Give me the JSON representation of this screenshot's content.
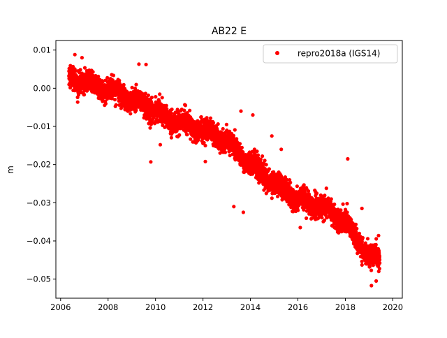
{
  "chart_data": {
    "type": "scatter",
    "title": "AB22 E",
    "xlabel": "",
    "ylabel": "m",
    "xlim": [
      2005.8,
      2020.4
    ],
    "ylim": [
      -0.055,
      0.0125
    ],
    "xticks": [
      2006,
      2008,
      2010,
      2012,
      2014,
      2016,
      2018,
      2020
    ],
    "xtick_labels": [
      "2006",
      "2008",
      "2010",
      "2012",
      "2014",
      "2016",
      "2018",
      "2020"
    ],
    "yticks": [
      0.01,
      0.0,
      -0.01,
      -0.02,
      -0.03,
      -0.04,
      -0.05
    ],
    "ytick_labels": [
      "0.01",
      "0.00",
      "−0.01",
      "−0.02",
      "−0.03",
      "−0.04",
      "−0.05"
    ],
    "grid": false,
    "legend": {
      "position": "top-right"
    },
    "series": [
      {
        "name": "repro2018a (IGS14)",
        "color": "#ff0000",
        "marker": "circle",
        "x_range": [
          2006.35,
          2019.45
        ],
        "trend": [
          [
            2006.4,
            0.003
          ],
          [
            2007.0,
            0.0015
          ],
          [
            2007.5,
            0.0005
          ],
          [
            2008.0,
            -0.0005
          ],
          [
            2008.5,
            -0.001
          ],
          [
            2009.0,
            -0.003
          ],
          [
            2009.5,
            -0.004
          ],
          [
            2010.0,
            -0.006
          ],
          [
            2010.5,
            -0.008
          ],
          [
            2011.0,
            -0.009
          ],
          [
            2011.5,
            -0.01
          ],
          [
            2012.0,
            -0.011
          ],
          [
            2012.5,
            -0.012
          ],
          [
            2013.0,
            -0.014
          ],
          [
            2013.5,
            -0.017
          ],
          [
            2014.0,
            -0.02
          ],
          [
            2014.5,
            -0.022
          ],
          [
            2015.0,
            -0.025
          ],
          [
            2015.5,
            -0.027
          ],
          [
            2016.0,
            -0.029
          ],
          [
            2016.5,
            -0.03
          ],
          [
            2017.0,
            -0.031
          ],
          [
            2017.5,
            -0.033
          ],
          [
            2018.0,
            -0.035
          ],
          [
            2018.5,
            -0.04
          ],
          [
            2019.0,
            -0.044
          ],
          [
            2019.4,
            -0.045
          ]
        ],
        "spread": 0.0025,
        "outliers": [
          [
            2006.6,
            0.0088
          ],
          [
            2006.9,
            0.008
          ],
          [
            2009.3,
            0.0063
          ],
          [
            2009.6,
            0.0062
          ],
          [
            2009.8,
            -0.0193
          ],
          [
            2010.2,
            -0.0148
          ],
          [
            2012.1,
            -0.0192
          ],
          [
            2013.3,
            -0.031
          ],
          [
            2013.7,
            -0.0325
          ],
          [
            2013.6,
            -0.006
          ],
          [
            2014.1,
            -0.007
          ],
          [
            2014.9,
            -0.0125
          ],
          [
            2014.5,
            -0.0178
          ],
          [
            2015.3,
            -0.016
          ],
          [
            2015.8,
            -0.0322
          ],
          [
            2016.1,
            -0.0365
          ],
          [
            2017.2,
            -0.0262
          ],
          [
            2018.1,
            -0.0185
          ],
          [
            2018.7,
            -0.0315
          ],
          [
            2019.1,
            -0.0517
          ],
          [
            2019.4,
            -0.0386
          ],
          [
            2019.3,
            -0.0505
          ]
        ]
      }
    ]
  }
}
